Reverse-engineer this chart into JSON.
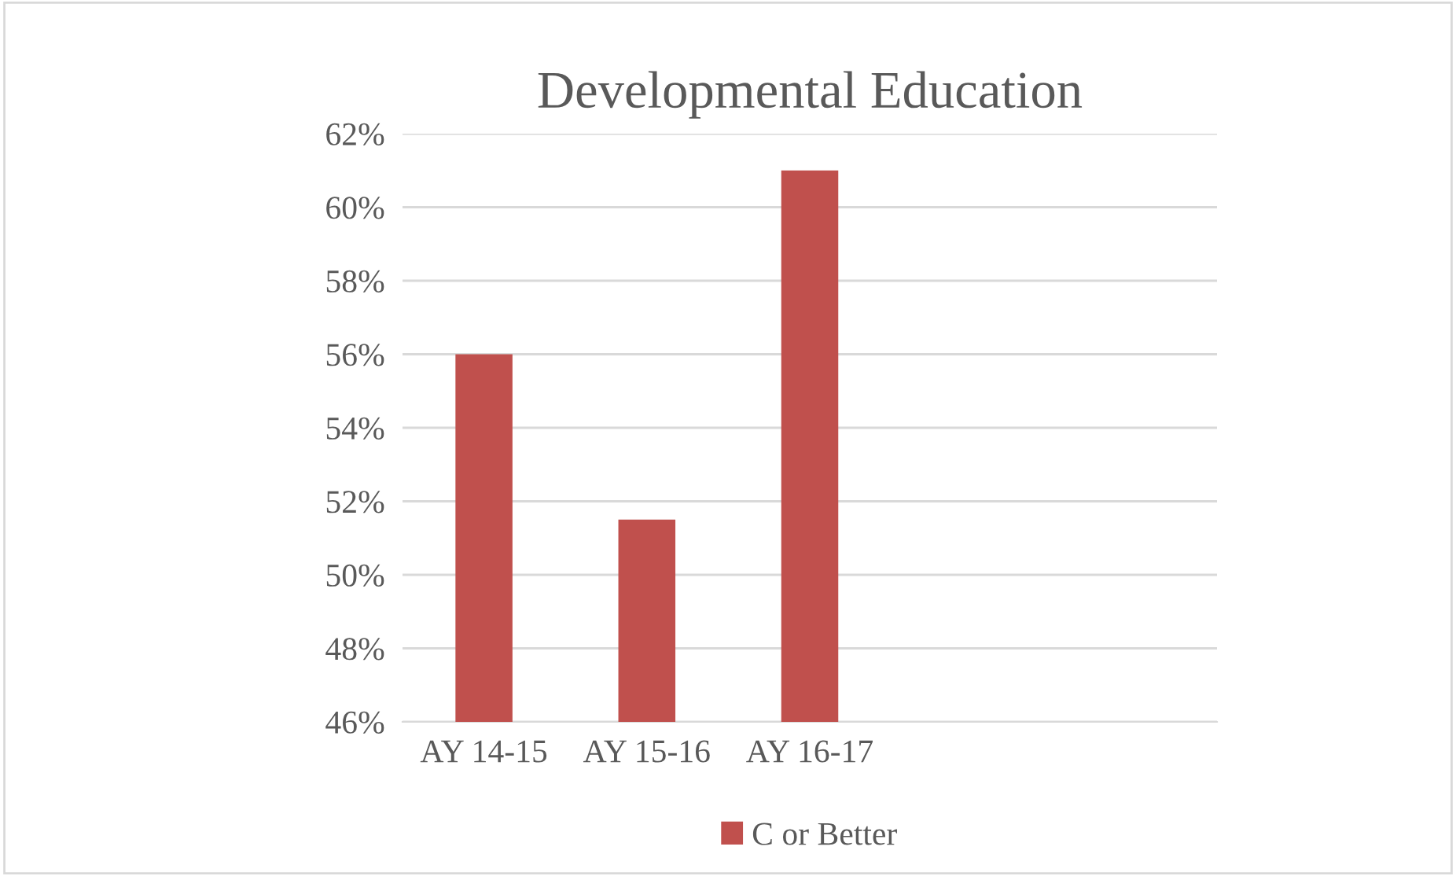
{
  "chart_data": {
    "type": "bar",
    "title": "Developmental Education",
    "categories": [
      "AY 14-15",
      "AY 15-16",
      "AY 16-17",
      null,
      null
    ],
    "series": [
      {
        "name": "C or Better",
        "color": "#c0504d",
        "values": [
          56,
          51.5,
          61,
          null,
          null
        ]
      }
    ],
    "ylim": [
      46,
      62
    ],
    "yticks": [
      {
        "value": 46,
        "label": "46%"
      },
      {
        "value": 48,
        "label": "48%"
      },
      {
        "value": 50,
        "label": "50%"
      },
      {
        "value": 52,
        "label": "52%"
      },
      {
        "value": 54,
        "label": "54%"
      },
      {
        "value": 56,
        "label": "56%"
      },
      {
        "value": 58,
        "label": "58%"
      },
      {
        "value": 60,
        "label": "60%"
      },
      {
        "value": 62,
        "label": "62%"
      }
    ],
    "grid": "y",
    "legend": "bottom"
  }
}
